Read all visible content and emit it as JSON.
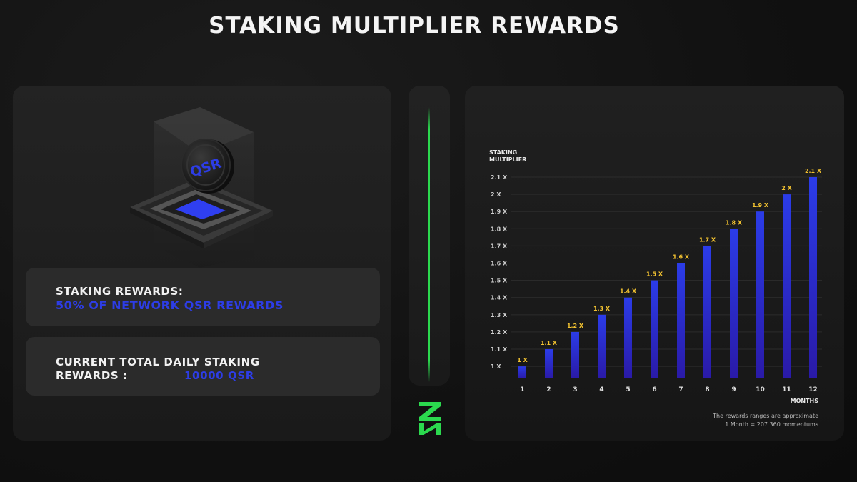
{
  "header": {
    "title": "STAKING MULTIPLIER REWARDS"
  },
  "left": {
    "token_label": "QSR",
    "rewards_label": "STAKING REWARDS:",
    "rewards_value": "50% OF NETWORK QSR REWARDS",
    "daily_label_line1": "CURRENT TOTAL DAILY STAKING",
    "daily_label_line2": "REWARDS :",
    "daily_value": "10000 QSR"
  },
  "notes": {
    "line1": "The rewards ranges are approximate",
    "line2": "1 Month = 207.360 momentums"
  },
  "colors": {
    "accent_blue": "#2d3de6",
    "bar_top": "#2b3ce8",
    "bar_bottom": "#2a1aa8",
    "label_yellow": "#f2c230",
    "logo_green": "#2bd94e"
  },
  "chart_data": {
    "type": "bar",
    "ylabel_line1": "STAKING",
    "ylabel_line2": "MULTIPLIER",
    "xlabel": "MONTHS",
    "categories": [
      "1",
      "2",
      "3",
      "4",
      "5",
      "6",
      "7",
      "8",
      "9",
      "10",
      "11",
      "12"
    ],
    "values": [
      1.0,
      1.1,
      1.2,
      1.3,
      1.4,
      1.5,
      1.6,
      1.7,
      1.8,
      1.9,
      2.0,
      2.1
    ],
    "data_labels": [
      "1 X",
      "1.1 X",
      "1.2 X",
      "1.3 X",
      "1.4 X",
      "1.5 X",
      "1.6 X",
      "1.7 X",
      "1.8 X",
      "1.9 X",
      "2 X",
      "2.1 X"
    ],
    "yticks": [
      1.0,
      1.1,
      1.2,
      1.3,
      1.4,
      1.5,
      1.6,
      1.7,
      1.8,
      1.9,
      2.0,
      2.1
    ],
    "ytick_labels": [
      "1 X",
      "1.1 X",
      "1.2 X",
      "1.3 X",
      "1.4 X",
      "1.5 X",
      "1.6 X",
      "1.7 X",
      "1.8 X",
      "1.9 X",
      "2 X",
      "2.1 X"
    ],
    "grid": true,
    "legend": "none"
  }
}
